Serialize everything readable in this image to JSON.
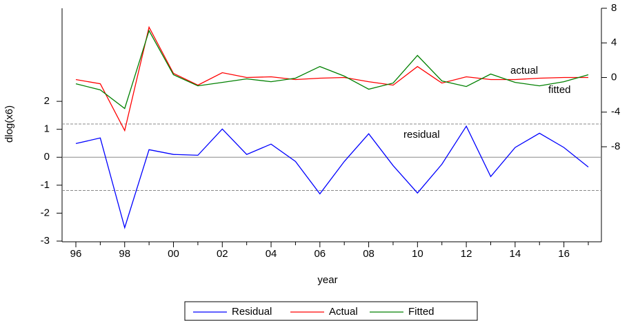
{
  "chart_data": {
    "type": "line",
    "categories": [
      "96",
      null,
      "98",
      null,
      "00",
      null,
      "02",
      null,
      "04",
      null,
      "06",
      null,
      "08",
      null,
      "10",
      null,
      "12",
      null,
      "14",
      null,
      "16",
      null
    ],
    "y_label": "dlog(x6)",
    "x_label": "year",
    "ylim": [
      -3,
      5.33
    ],
    "yticks": [
      -3,
      -2,
      -1,
      0,
      1,
      2
    ],
    "y2lim": [
      -18.9,
      8
    ],
    "y2ticks": [
      -8,
      -4,
      0,
      4,
      8
    ],
    "ref_lines": [
      1.19,
      0,
      -1.19
    ],
    "ref_line_styles": [
      "dashed",
      "solid",
      "dashed"
    ],
    "series": [
      {
        "name": "Residual",
        "color": "#0000ff",
        "values": [
          0.49,
          0.69,
          -2.52,
          0.27,
          0.1,
          0.07,
          1.01,
          0.1,
          0.47,
          -0.15,
          -1.31,
          -0.15,
          0.84,
          -0.3,
          -1.28,
          -0.25,
          1.11,
          -0.69,
          0.35,
          0.86,
          0.35,
          -0.35
        ]
      },
      {
        "name": "Actual",
        "color": "#ff0000",
        "axis": "y2",
        "values": [
          -0.24,
          -0.72,
          -6.13,
          5.81,
          0.48,
          -0.88,
          0.56,
          0,
          0.08,
          -0.24,
          -0.08,
          0,
          -0.48,
          -0.88,
          1.27,
          -0.64,
          0.08,
          -0.24,
          -0.24,
          -0.08,
          0,
          0
        ]
      },
      {
        "name": "Fitted",
        "color": "#008000",
        "axis": "y2",
        "values": [
          -0.72,
          -1.43,
          -3.58,
          5.41,
          0.32,
          -0.96,
          -0.56,
          -0.16,
          -0.48,
          -0.08,
          1.27,
          0.16,
          -1.35,
          -0.64,
          2.55,
          -0.4,
          -1.04,
          0.4,
          -0.56,
          -0.96,
          -0.48,
          0.32
        ]
      }
    ],
    "annotations": [
      "actual",
      "fitted",
      "residual"
    ]
  }
}
